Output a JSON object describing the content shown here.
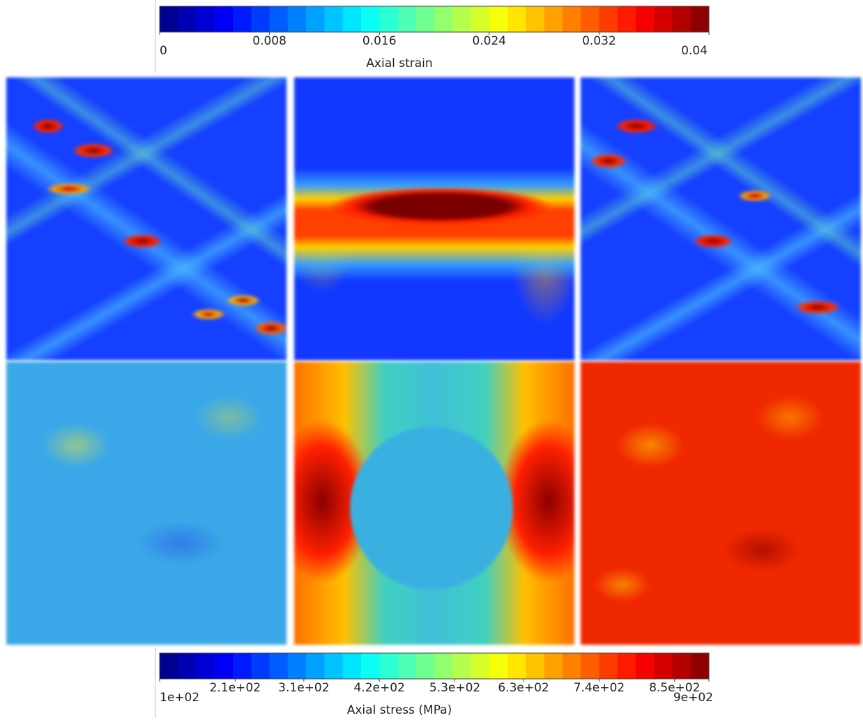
{
  "chart_data": [
    {
      "type": "colorbar",
      "title": "Axial strain",
      "colormap": "jet",
      "levels": 30,
      "xlim": [
        0,
        0.04
      ],
      "xticks": [
        0,
        0.008,
        0.016,
        0.024,
        0.032,
        0.04
      ]
    },
    {
      "type": "colorbar",
      "title": "Axial stress (MPa)",
      "colormap": "jet",
      "levels": 30,
      "xlim": [
        100,
        900
      ],
      "xticks": [
        {
          "value": 100,
          "label": "1e+02"
        },
        {
          "value": 210,
          "label": "2.1e+02"
        },
        {
          "value": 310,
          "label": "3.1e+02"
        },
        {
          "value": 420,
          "label": "4.2e+02"
        },
        {
          "value": 530,
          "label": "5.3e+02"
        },
        {
          "value": 630,
          "label": "6.3e+02"
        },
        {
          "value": 740,
          "label": "7.4e+02"
        },
        {
          "value": 850,
          "label": "8.5e+02"
        },
        {
          "value": 900,
          "label": "9e+02"
        }
      ]
    }
  ]
}
